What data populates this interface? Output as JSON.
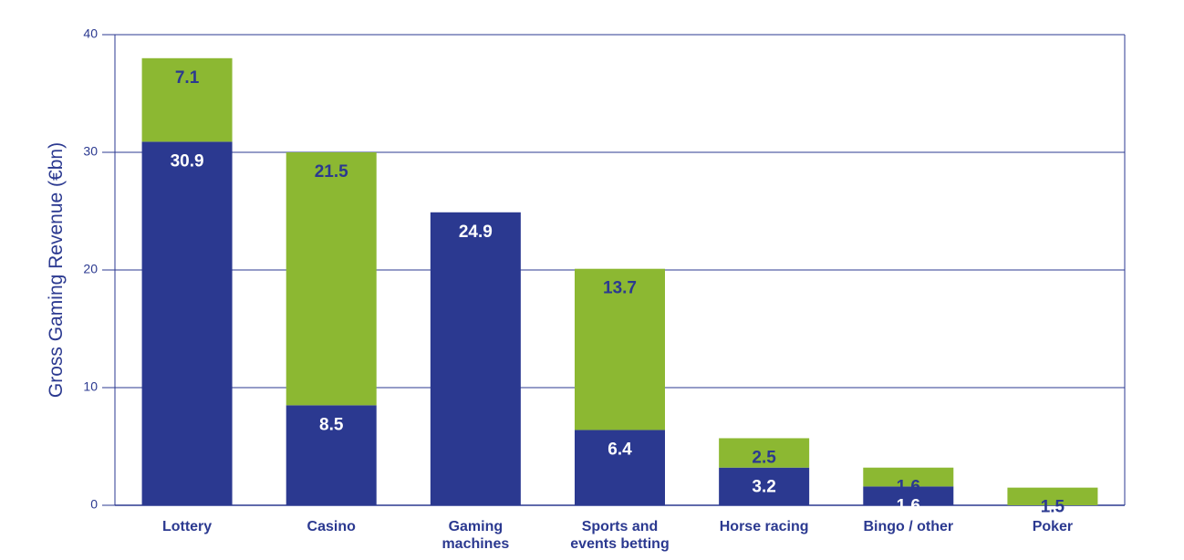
{
  "chart_data": {
    "type": "bar",
    "stacked": true,
    "ylabel": "Gross Gaming Revenue (€bn)",
    "ylim": [
      0,
      40
    ],
    "yticks": [
      0,
      10,
      20,
      30,
      40
    ],
    "grid": true,
    "categories": [
      [
        "Lottery"
      ],
      [
        "Casino"
      ],
      [
        "Gaming",
        "machines"
      ],
      [
        "Sports and",
        "events betting"
      ],
      [
        "Horse racing"
      ],
      [
        "Bingo / other"
      ],
      [
        "Poker"
      ]
    ],
    "series": [
      {
        "values": [
          30.9,
          8.5,
          24.9,
          6.4,
          3.2,
          1.6,
          null
        ],
        "color": "#2b3990",
        "label_color": "#ffffff"
      },
      {
        "values": [
          7.1,
          21.5,
          null,
          13.7,
          2.5,
          1.6,
          1.5
        ],
        "color": "#8cb832",
        "label_color": "#2b3990"
      }
    ]
  }
}
